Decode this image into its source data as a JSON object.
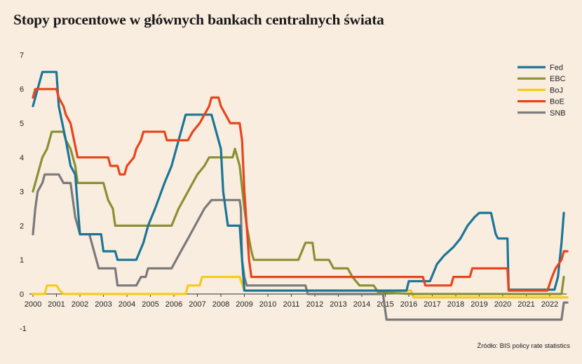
{
  "title": "Stopy procentowe w głównych bankach centralnych świata",
  "source": "Źródło: BIS policy rate statistics",
  "chart_data": {
    "type": "line",
    "title": "Stopy procentowe w głównych bankach centralnych świata",
    "xlabel": "",
    "ylabel": "",
    "xlim": [
      2000,
      2022.75
    ],
    "ylim": [
      -1,
      7
    ],
    "x_ticks": [
      "2000",
      "2001",
      "2002",
      "2003",
      "2004",
      "2005",
      "2006",
      "2007",
      "2008",
      "2009",
      "2010",
      "2011",
      "2012",
      "2013",
      "2014",
      "2015",
      "2016",
      "2017",
      "2018",
      "2019",
      "2020",
      "2021",
      "2022"
    ],
    "y_ticks": [
      "-1",
      "0",
      "1",
      "2",
      "3",
      "4",
      "5",
      "6",
      "7"
    ],
    "grid": false,
    "legend": "top-right",
    "series": [
      {
        "name": "Fed",
        "color": "#1a7596",
        "points": [
          [
            2000,
            5.5
          ],
          [
            2000.2,
            6.0
          ],
          [
            2000.4,
            6.5
          ],
          [
            2001.0,
            6.5
          ],
          [
            2001.1,
            5.5
          ],
          [
            2001.4,
            4.5
          ],
          [
            2001.6,
            3.75
          ],
          [
            2001.8,
            3.5
          ],
          [
            2002.0,
            1.75
          ],
          [
            2002.9,
            1.75
          ],
          [
            2003.0,
            1.25
          ],
          [
            2003.5,
            1.25
          ],
          [
            2003.6,
            1.0
          ],
          [
            2004.4,
            1.0
          ],
          [
            2004.7,
            1.5
          ],
          [
            2004.9,
            2.0
          ],
          [
            2005.2,
            2.5
          ],
          [
            2005.6,
            3.25
          ],
          [
            2005.9,
            3.75
          ],
          [
            2006.2,
            4.5
          ],
          [
            2006.5,
            5.25
          ],
          [
            2007.6,
            5.25
          ],
          [
            2007.8,
            4.75
          ],
          [
            2008.0,
            4.25
          ],
          [
            2008.1,
            3.0
          ],
          [
            2008.3,
            2.0
          ],
          [
            2008.8,
            2.0
          ],
          [
            2008.9,
            1.0
          ],
          [
            2009.0,
            0.1
          ],
          [
            2015.9,
            0.1
          ],
          [
            2016.0,
            0.375
          ],
          [
            2016.9,
            0.375
          ],
          [
            2017.2,
            0.875
          ],
          [
            2017.5,
            1.125
          ],
          [
            2017.9,
            1.375
          ],
          [
            2018.2,
            1.625
          ],
          [
            2018.5,
            2.0
          ],
          [
            2018.8,
            2.25
          ],
          [
            2019.0,
            2.375
          ],
          [
            2019.5,
            2.375
          ],
          [
            2019.7,
            1.75
          ],
          [
            2019.8,
            1.625
          ],
          [
            2020.2,
            1.625
          ],
          [
            2020.25,
            0.125
          ],
          [
            2022.2,
            0.125
          ],
          [
            2022.35,
            0.5
          ],
          [
            2022.5,
            1.5
          ],
          [
            2022.6,
            2.375
          ]
        ]
      },
      {
        "name": "EBC",
        "color": "#8b9032",
        "points": [
          [
            2000,
            3.0
          ],
          [
            2000.2,
            3.5
          ],
          [
            2000.4,
            4.0
          ],
          [
            2000.6,
            4.25
          ],
          [
            2000.8,
            4.75
          ],
          [
            2001.3,
            4.75
          ],
          [
            2001.4,
            4.5
          ],
          [
            2001.6,
            4.25
          ],
          [
            2001.8,
            3.75
          ],
          [
            2001.9,
            3.25
          ],
          [
            2003.0,
            3.25
          ],
          [
            2003.2,
            2.75
          ],
          [
            2003.4,
            2.5
          ],
          [
            2003.5,
            2.0
          ],
          [
            2005.9,
            2.0
          ],
          [
            2006.2,
            2.5
          ],
          [
            2006.4,
            2.75
          ],
          [
            2006.6,
            3.0
          ],
          [
            2006.8,
            3.25
          ],
          [
            2007.0,
            3.5
          ],
          [
            2007.3,
            3.75
          ],
          [
            2007.5,
            4.0
          ],
          [
            2008.5,
            4.0
          ],
          [
            2008.6,
            4.25
          ],
          [
            2008.8,
            3.75
          ],
          [
            2009.0,
            2.5
          ],
          [
            2009.1,
            2.0
          ],
          [
            2009.3,
            1.25
          ],
          [
            2009.4,
            1.0
          ],
          [
            2011.3,
            1.0
          ],
          [
            2011.45,
            1.25
          ],
          [
            2011.6,
            1.5
          ],
          [
            2011.9,
            1.5
          ],
          [
            2012.0,
            1.0
          ],
          [
            2012.6,
            1.0
          ],
          [
            2012.8,
            0.75
          ],
          [
            2013.4,
            0.75
          ],
          [
            2013.6,
            0.5
          ],
          [
            2013.9,
            0.25
          ],
          [
            2014.5,
            0.25
          ],
          [
            2014.7,
            0.05
          ],
          [
            2016.2,
            0.0
          ],
          [
            2022.5,
            0.0
          ],
          [
            2022.6,
            0.5
          ]
        ]
      },
      {
        "name": "BoJ",
        "color": "#f5cb1c",
        "points": [
          [
            2000,
            0.0
          ],
          [
            2000.5,
            0.0
          ],
          [
            2000.6,
            0.25
          ],
          [
            2001.0,
            0.25
          ],
          [
            2001.15,
            0.1
          ],
          [
            2001.3,
            0.0
          ],
          [
            2006.5,
            0.0
          ],
          [
            2006.6,
            0.25
          ],
          [
            2007.1,
            0.25
          ],
          [
            2007.2,
            0.5
          ],
          [
            2008.8,
            0.5
          ],
          [
            2008.9,
            0.3
          ],
          [
            2009.0,
            0.1
          ],
          [
            2016.1,
            0.1
          ],
          [
            2016.2,
            -0.1
          ],
          [
            2022.75,
            -0.1
          ]
        ]
      },
      {
        "name": "BoE",
        "color": "#e8441c",
        "points": [
          [
            2000,
            5.75
          ],
          [
            2000.1,
            6.0
          ],
          [
            2001.0,
            6.0
          ],
          [
            2001.1,
            5.75
          ],
          [
            2001.3,
            5.5
          ],
          [
            2001.4,
            5.25
          ],
          [
            2001.6,
            5.0
          ],
          [
            2001.9,
            4.0
          ],
          [
            2003.2,
            4.0
          ],
          [
            2003.3,
            3.75
          ],
          [
            2003.6,
            3.75
          ],
          [
            2003.7,
            3.5
          ],
          [
            2003.9,
            3.5
          ],
          [
            2004.0,
            3.75
          ],
          [
            2004.3,
            4.0
          ],
          [
            2004.4,
            4.25
          ],
          [
            2004.6,
            4.5
          ],
          [
            2004.7,
            4.75
          ],
          [
            2005.6,
            4.75
          ],
          [
            2005.7,
            4.5
          ],
          [
            2006.6,
            4.5
          ],
          [
            2006.8,
            4.75
          ],
          [
            2007.1,
            5.0
          ],
          [
            2007.3,
            5.25
          ],
          [
            2007.5,
            5.5
          ],
          [
            2007.6,
            5.75
          ],
          [
            2007.9,
            5.75
          ],
          [
            2008.0,
            5.5
          ],
          [
            2008.2,
            5.25
          ],
          [
            2008.4,
            5.0
          ],
          [
            2008.8,
            5.0
          ],
          [
            2008.9,
            4.5
          ],
          [
            2009.0,
            3.0
          ],
          [
            2009.1,
            2.0
          ],
          [
            2009.2,
            1.0
          ],
          [
            2009.3,
            0.5
          ],
          [
            2016.6,
            0.5
          ],
          [
            2016.7,
            0.25
          ],
          [
            2017.8,
            0.25
          ],
          [
            2017.9,
            0.5
          ],
          [
            2018.6,
            0.5
          ],
          [
            2018.7,
            0.75
          ],
          [
            2020.2,
            0.75
          ],
          [
            2020.25,
            0.1
          ],
          [
            2021.9,
            0.1
          ],
          [
            2022.1,
            0.5
          ],
          [
            2022.25,
            0.75
          ],
          [
            2022.5,
            1.0
          ],
          [
            2022.6,
            1.25
          ],
          [
            2022.75,
            1.25
          ]
        ]
      },
      {
        "name": "SNB",
        "color": "#7a7a7a",
        "points": [
          [
            2000,
            1.75
          ],
          [
            2000.1,
            2.5
          ],
          [
            2000.2,
            3.0
          ],
          [
            2000.4,
            3.25
          ],
          [
            2000.5,
            3.5
          ],
          [
            2001.1,
            3.5
          ],
          [
            2001.3,
            3.25
          ],
          [
            2001.6,
            3.25
          ],
          [
            2001.7,
            2.75
          ],
          [
            2001.8,
            2.25
          ],
          [
            2001.9,
            2.0
          ],
          [
            2002.0,
            1.75
          ],
          [
            2002.4,
            1.75
          ],
          [
            2002.6,
            1.25
          ],
          [
            2002.8,
            0.75
          ],
          [
            2003.5,
            0.75
          ],
          [
            2003.6,
            0.25
          ],
          [
            2004.4,
            0.25
          ],
          [
            2004.6,
            0.5
          ],
          [
            2004.8,
            0.5
          ],
          [
            2004.9,
            0.75
          ],
          [
            2005.9,
            0.75
          ],
          [
            2006.1,
            1.0
          ],
          [
            2006.3,
            1.25
          ],
          [
            2006.5,
            1.5
          ],
          [
            2006.7,
            1.75
          ],
          [
            2006.9,
            2.0
          ],
          [
            2007.1,
            2.25
          ],
          [
            2007.3,
            2.5
          ],
          [
            2007.6,
            2.75
          ],
          [
            2008.8,
            2.75
          ],
          [
            2008.85,
            2.5
          ],
          [
            2008.9,
            1.0
          ],
          [
            2009.0,
            0.5
          ],
          [
            2009.1,
            0.25
          ],
          [
            2011.6,
            0.25
          ],
          [
            2011.7,
            0.0
          ],
          [
            2014.9,
            0.0
          ],
          [
            2015.05,
            -0.75
          ],
          [
            2022.5,
            -0.75
          ],
          [
            2022.6,
            -0.25
          ],
          [
            2022.75,
            -0.25
          ]
        ]
      }
    ]
  }
}
